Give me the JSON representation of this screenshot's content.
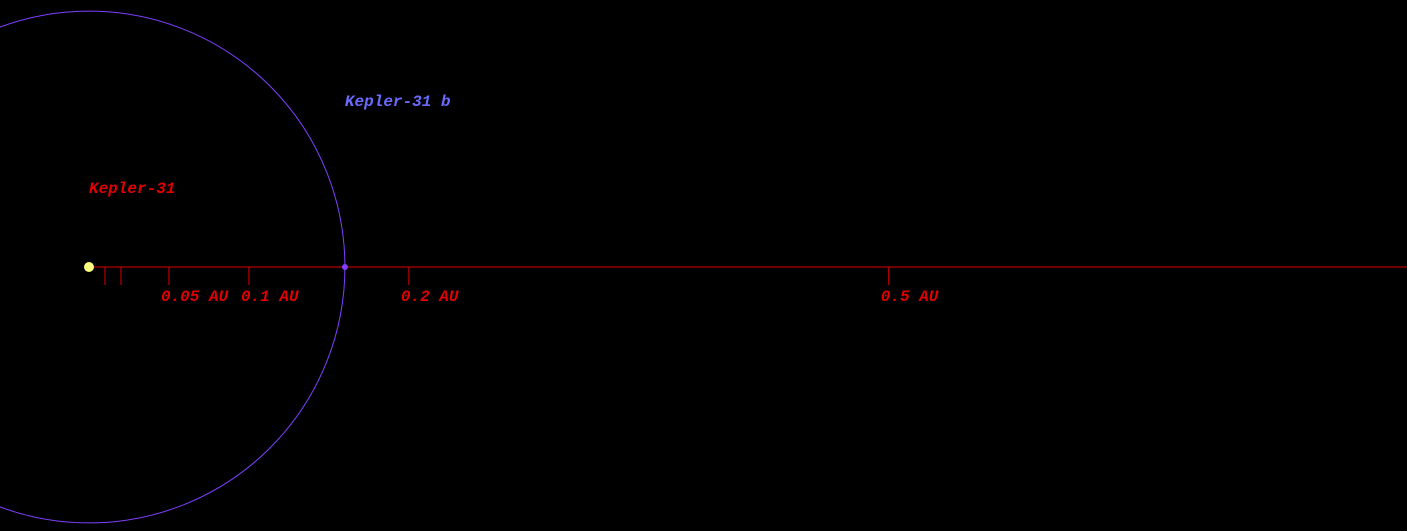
{
  "star": {
    "name": "Kepler-31",
    "color": "#ffff80"
  },
  "planets": [
    {
      "name": "Kepler-31 b",
      "semi_major_axis": 0.16,
      "color": "#7f3fff",
      "label_color": "#6a6aff"
    }
  ],
  "axis": {
    "color": "#e00000",
    "xlim": [
      0,
      0.824
    ],
    "ticks": [
      {
        "value": 0.01
      },
      {
        "value": 0.02
      },
      {
        "value": 0.05,
        "label": "0.05 AU"
      },
      {
        "value": 0.1,
        "label": "0.1 AU"
      },
      {
        "value": 0.2,
        "label": "0.2 AU"
      },
      {
        "value": 0.5,
        "label": "0.5 AU"
      }
    ]
  }
}
